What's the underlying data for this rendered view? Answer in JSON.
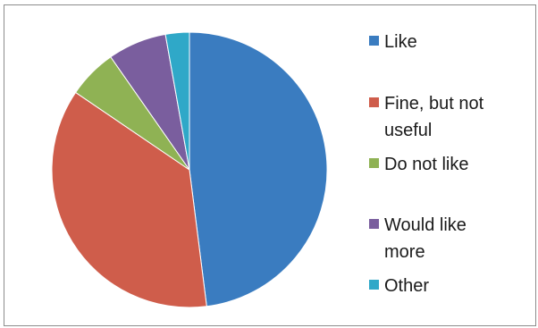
{
  "chart_data": {
    "type": "pie",
    "title": "",
    "series": [
      {
        "categories": [
          "Like",
          "Fine, but not useful",
          "Do not like",
          "Would like more",
          "Other"
        ],
        "values": [
          48.0,
          36.5,
          5.8,
          6.9,
          2.8
        ],
        "colors": [
          "#3a7cc0",
          "#cf5d4b",
          "#8fb254",
          "#7a5e9e",
          "#2fa8c8"
        ]
      }
    ],
    "legend_position": "right"
  }
}
